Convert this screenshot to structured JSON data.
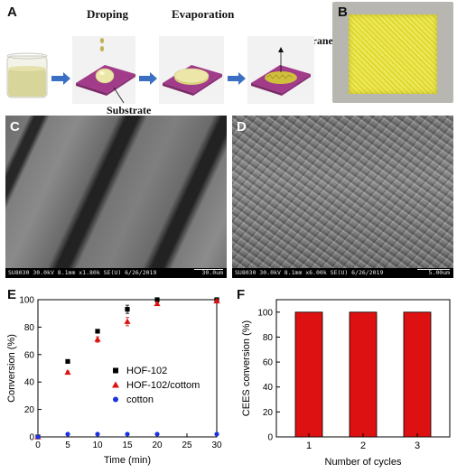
{
  "panel_labels": {
    "a": "A",
    "b": "B",
    "c": "C",
    "d": "D",
    "e": "E",
    "f": "F"
  },
  "panel_a": {
    "step_droping": "Droping",
    "step_evaporation": "Evaporation",
    "label_hof_membrane": "HOF membrane",
    "label_substrate": "Substrate"
  },
  "panel_c": {
    "footer": "SU8030 30.0kV 8.1mm x1.80k SE(U) 6/26/2019",
    "scale": "30.0um"
  },
  "panel_d": {
    "footer": "SU8030 30.0kV 8.1mm x6.00k SE(U) 6/26/2019",
    "scale": "5.00um"
  },
  "colors": {
    "beaker_liquid": "#d8d59a",
    "substrate": "#a23b8a",
    "droplet": "#ece7a8",
    "arrow": "#3a6fc4",
    "membrane_yellow": "#e8e23a",
    "hof102": "#000000",
    "hof102_cotton": "#dd1111",
    "cotton": "#1a33e0",
    "bar_fill": "#dd1111"
  },
  "chart_data": [
    {
      "type": "scatter",
      "panel": "E",
      "xlabel": "Time (min)",
      "ylabel": "Conversion (%)",
      "xlim": [
        0,
        30
      ],
      "ylim": [
        0,
        100
      ],
      "xticks": [
        0,
        5,
        10,
        15,
        20,
        25,
        30
      ],
      "yticks": [
        0,
        20,
        40,
        60,
        80,
        100
      ],
      "legend_position": "center-right",
      "series": [
        {
          "name": "HOF-102",
          "marker": "square",
          "color": "#000000",
          "x": [
            0,
            5,
            10,
            15,
            20,
            30
          ],
          "y": [
            0,
            55,
            77,
            93,
            100,
            100
          ],
          "err": [
            0,
            1,
            1,
            3,
            1,
            1
          ]
        },
        {
          "name": "HOF-102/cottom",
          "marker": "triangle",
          "color": "#dd1111",
          "x": [
            0,
            5,
            10,
            15,
            20,
            30
          ],
          "y": [
            0,
            47,
            71,
            84,
            97,
            99
          ],
          "err": [
            0,
            1,
            2,
            3,
            1,
            1
          ]
        },
        {
          "name": "cotton",
          "marker": "circle",
          "color": "#1a33e0",
          "x": [
            0,
            5,
            10,
            15,
            20,
            30
          ],
          "y": [
            0,
            2,
            2,
            2,
            2,
            2
          ],
          "err": [
            0,
            0,
            0,
            0,
            0,
            0
          ]
        }
      ]
    },
    {
      "type": "bar",
      "panel": "F",
      "xlabel": "Number of cycles",
      "ylabel": "CEES conversion (%)",
      "categories": [
        "1",
        "2",
        "3"
      ],
      "values": [
        100,
        100,
        100
      ],
      "ylim": [
        0,
        110
      ],
      "yticks": [
        0,
        20,
        40,
        60,
        80,
        100
      ]
    }
  ]
}
